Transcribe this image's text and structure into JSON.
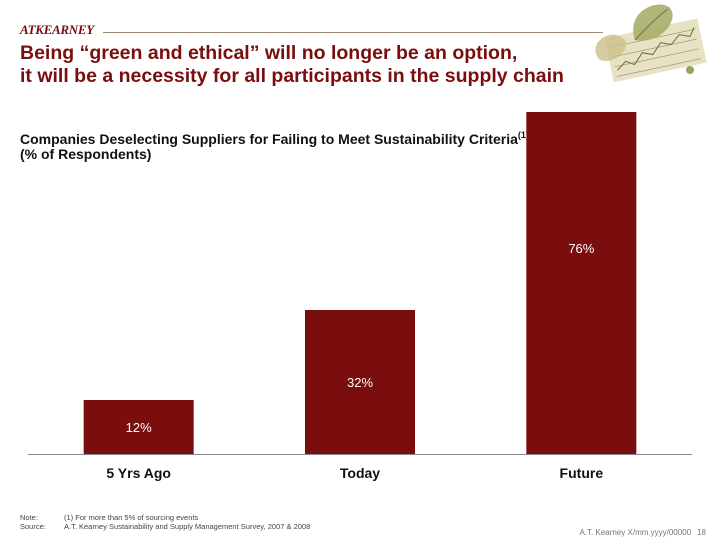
{
  "header": {
    "logo": "ATKEARNEY",
    "headline_line1": "Being “green and ethical” will no longer be an option,",
    "headline_line2": "it will be a necessity for all participants in the supply chain"
  },
  "chart_data": {
    "type": "bar",
    "title": "Companies Deselecting Suppliers for Failing to Meet Sustainability Criteria",
    "title_note": "(1)",
    "subtitle": "(% of Respondents)",
    "categories": [
      "5 Yrs Ago",
      "Today",
      "Future"
    ],
    "values": [
      12,
      32,
      76
    ],
    "value_labels": [
      "12%",
      "32%",
      "76%"
    ],
    "ylim": [
      0,
      80
    ],
    "bar_color": "#7a0e0e",
    "label_color": "#ffffff",
    "xlabel": "",
    "ylabel": ""
  },
  "notes": {
    "note_label": "Note:",
    "note_text": "(1) For more than 5% of sourcing events",
    "source_label": "Source:",
    "source_text": "A.T. Kearney Sustainability and Supply Management Survey, 2007 & 2008"
  },
  "footer": {
    "code": "A.T. Kearney X/mm.yyyy/00000",
    "page": "18"
  }
}
